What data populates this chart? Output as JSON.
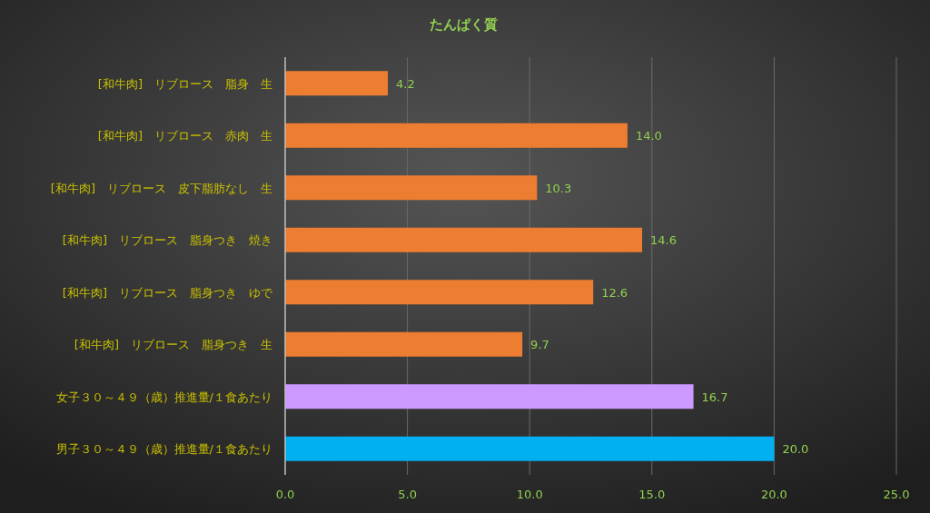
{
  "chart_data": {
    "type": "bar",
    "orientation": "horizontal",
    "title": "たんぱく質",
    "categories": [
      "[和牛肉]　リブロース　脂身　生",
      "[和牛肉]　リブロース　赤肉　生",
      "[和牛肉]　リブロース　皮下脂肪なし　生",
      "[和牛肉]　リブロース　脂身つき　焼き",
      "[和牛肉]　リブロース　脂身つき　ゆで",
      "[和牛肉]　リブロース　脂身つき　生",
      "女子３０～４９（歳）推進量/１食あたり",
      "男子３０～４９（歳）推進量/１食あたり"
    ],
    "values": [
      4.2,
      14.0,
      10.3,
      14.6,
      12.6,
      9.7,
      16.7,
      20.0
    ],
    "value_labels": [
      "4.2",
      "14.0",
      "10.3",
      "14.6",
      "12.6",
      "9.7",
      "16.7",
      "20.0"
    ],
    "colors": [
      "#ed7d31",
      "#ed7d31",
      "#ed7d31",
      "#ed7d31",
      "#ed7d31",
      "#ed7d31",
      "#cc99ff",
      "#00b0f0"
    ],
    "xlim": [
      0,
      25
    ],
    "xticks": [
      {
        "value": 0,
        "label": "0.0"
      },
      {
        "value": 5,
        "label": "5.0"
      },
      {
        "value": 10,
        "label": "10.0"
      },
      {
        "value": 15,
        "label": "15.0"
      },
      {
        "value": 20,
        "label": "20.0"
      },
      {
        "value": 25,
        "label": "25.0"
      }
    ],
    "grid": "x"
  }
}
